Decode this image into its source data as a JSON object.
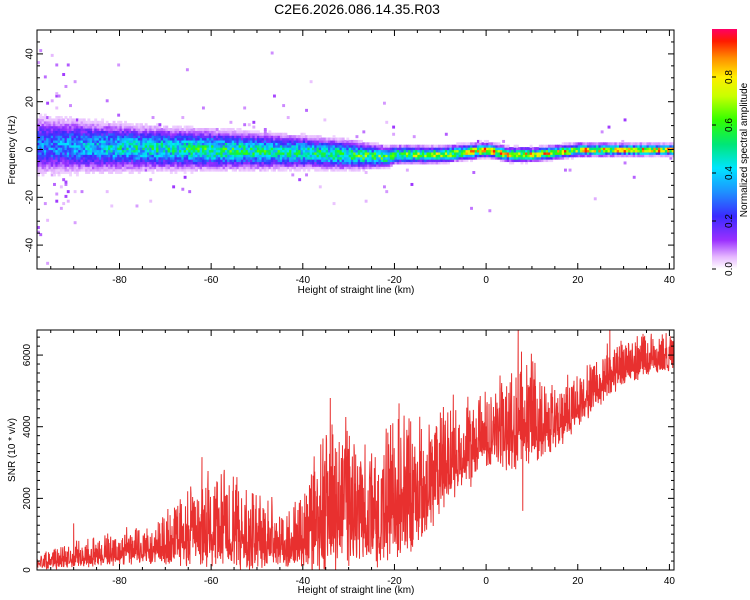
{
  "title": "C2E6.2026.086.14.35.R03",
  "chart_data": [
    {
      "type": "heatmap",
      "title": "C2E6.2026.086.14.35.R03",
      "xlabel": "Height of straight line (km)",
      "ylabel": "Frequency (Hz)",
      "xlim": [
        -98,
        41
      ],
      "ylim": [
        -50,
        50
      ],
      "xticks": [
        -80,
        -60,
        -40,
        -20,
        0,
        20,
        40
      ],
      "xtick_labels": [
        "-80",
        "-60",
        "-40",
        "-20",
        "0",
        "20",
        "40"
      ],
      "yticks": [
        -40,
        -20,
        0,
        20,
        40
      ],
      "ytick_labels": [
        "-40",
        "-20",
        "0",
        "20",
        "40"
      ],
      "colorbar": {
        "label": "Normalized spectral amplitude",
        "range": [
          0,
          1
        ],
        "ticks": [
          0.0,
          0.2,
          0.4,
          0.6,
          0.8
        ],
        "tick_labels": [
          "0.0",
          "0.2",
          "0.4",
          "0.6",
          "0.8"
        ],
        "colormap": "rainbow (white→purple→blue→cyan→green→yellow→orange→red)"
      },
      "band": {
        "description": "Spectral energy concentrated near 0 Hz; band is broad and noisy at low heights, narrowing and strengthening toward higher heights.",
        "center_hz": [
          {
            "x": -98,
            "f": 2
          },
          {
            "x": -80,
            "f": 1
          },
          {
            "x": -60,
            "f": 0
          },
          {
            "x": -40,
            "f": -1
          },
          {
            "x": -22,
            "f": -3
          },
          {
            "x": -20,
            "f": -2
          },
          {
            "x": -10,
            "f": -2
          },
          {
            "x": 0,
            "f": 0
          },
          {
            "x": 5,
            "f": -2
          },
          {
            "x": 10,
            "f": -2
          },
          {
            "x": 20,
            "f": 0
          },
          {
            "x": 41,
            "f": 0
          }
        ],
        "halfwidth_hz": [
          {
            "x": -98,
            "w": 8
          },
          {
            "x": -75,
            "w": 6
          },
          {
            "x": -50,
            "w": 5
          },
          {
            "x": -30,
            "w": 4
          },
          {
            "x": -20,
            "w": 2.5
          },
          {
            "x": 0,
            "w": 2
          },
          {
            "x": 41,
            "w": 1.5
          }
        ],
        "peak_amplitude": [
          {
            "x": -98,
            "a": 0.35
          },
          {
            "x": -80,
            "a": 0.5
          },
          {
            "x": -60,
            "a": 0.6
          },
          {
            "x": -40,
            "a": 0.55
          },
          {
            "x": -20,
            "a": 0.7
          },
          {
            "x": -5,
            "a": 0.8
          },
          {
            "x": 0,
            "a": 0.95
          },
          {
            "x": 10,
            "a": 0.85
          },
          {
            "x": 20,
            "a": 0.9
          },
          {
            "x": 41,
            "a": 0.95
          }
        ]
      }
    },
    {
      "type": "line",
      "xlabel": "Height of straight line (km)",
      "ylabel": "SNR (10 * v/v)",
      "xlim": [
        -98,
        41
      ],
      "ylim": [
        0,
        6700
      ],
      "xticks": [
        -80,
        -60,
        -40,
        -20,
        0,
        20,
        40
      ],
      "xtick_labels": [
        "-80",
        "-60",
        "-40",
        "-20",
        "0",
        "20",
        "40"
      ],
      "yticks": [
        0,
        2000,
        4000,
        6000
      ],
      "ytick_labels": [
        "0",
        "2000",
        "4000",
        "6000"
      ],
      "color": "#e8302f",
      "series": [
        {
          "name": "SNR",
          "trend": [
            {
              "x": -98,
              "base": 150,
              "amp": 250
            },
            {
              "x": -90,
              "base": 300,
              "amp": 450
            },
            {
              "x": -80,
              "base": 450,
              "amp": 550
            },
            {
              "x": -72,
              "base": 550,
              "amp": 700
            },
            {
              "x": -66,
              "base": 800,
              "amp": 1200
            },
            {
              "x": -60,
              "base": 1000,
              "amp": 1600
            },
            {
              "x": -52,
              "base": 800,
              "amp": 1400
            },
            {
              "x": -44,
              "base": 600,
              "amp": 900
            },
            {
              "x": -40,
              "base": 700,
              "amp": 1200
            },
            {
              "x": -36,
              "base": 1300,
              "amp": 2600
            },
            {
              "x": -30,
              "base": 1400,
              "amp": 2300
            },
            {
              "x": -24,
              "base": 1200,
              "amp": 2000
            },
            {
              "x": -20,
              "base": 1600,
              "amp": 2400
            },
            {
              "x": -14,
              "base": 1700,
              "amp": 2000
            },
            {
              "x": -10,
              "base": 2700,
              "amp": 1800
            },
            {
              "x": -4,
              "base": 3100,
              "amp": 1500
            },
            {
              "x": 0,
              "base": 3600,
              "amp": 1200
            },
            {
              "x": 6,
              "base": 3700,
              "amp": 1600
            },
            {
              "x": 8,
              "base": 4200,
              "amp": 2200
            },
            {
              "x": 12,
              "base": 3800,
              "amp": 1300
            },
            {
              "x": 18,
              "base": 4200,
              "amp": 1000
            },
            {
              "x": 24,
              "base": 5000,
              "amp": 900
            },
            {
              "x": 30,
              "base": 5600,
              "amp": 800
            },
            {
              "x": 36,
              "base": 5800,
              "amp": 700
            },
            {
              "x": 41,
              "base": 5900,
              "amp": 600
            }
          ],
          "notable_points": [
            {
              "x": -90,
              "y": 1300
            },
            {
              "x": -62,
              "y": 3150
            },
            {
              "x": -34,
              "y": 4800
            },
            {
              "x": -19,
              "y": 4650
            },
            {
              "x": 7,
              "y": 6700
            },
            {
              "x": 8,
              "y": 1650
            },
            {
              "x": 27,
              "y": 6700
            }
          ]
        }
      ]
    }
  ]
}
